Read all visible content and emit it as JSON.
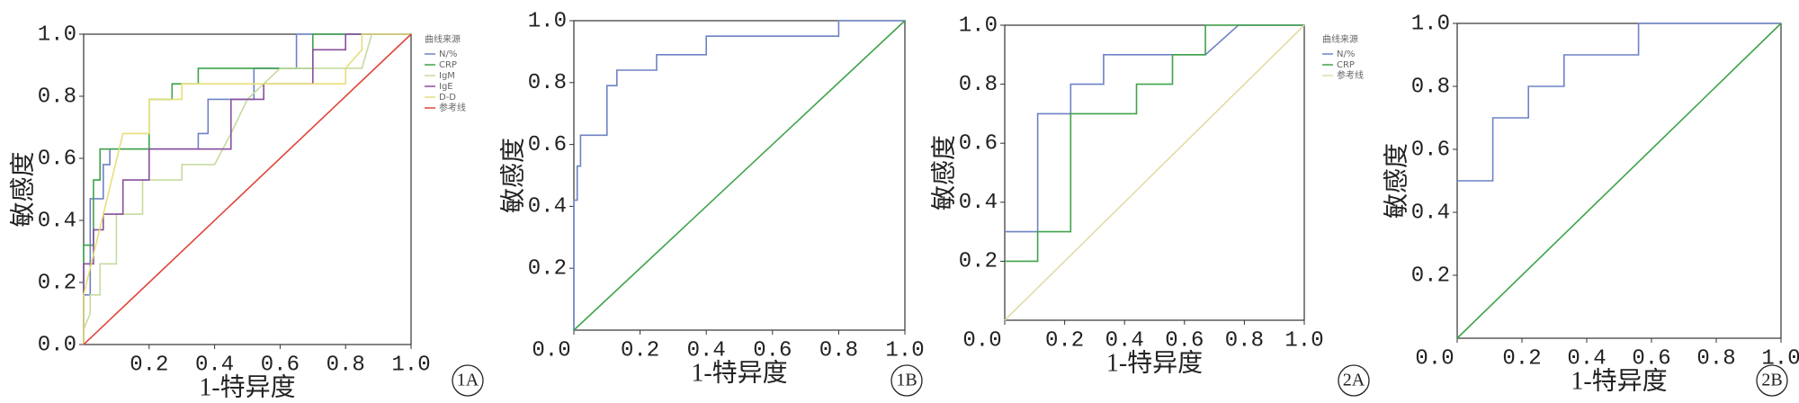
{
  "chart_data": [
    {
      "type": "line",
      "panel": "1A",
      "xlabel": "1-特异度",
      "ylabel": "敏感度",
      "legend": "right",
      "legend_title": "曲线来源",
      "xlim": [
        0,
        1
      ],
      "ylim": [
        0,
        1
      ],
      "xticks": [
        0.2,
        0.4,
        0.6,
        0.8,
        {
          "value": 1,
          "label": "1.0"
        }
      ],
      "yticks": [
        {
          "value": 0,
          "label": "0.0"
        },
        0.2,
        0.4,
        0.6,
        0.8,
        {
          "value": 1,
          "label": "1.0"
        }
      ],
      "series": [
        {
          "name": "N/%",
          "color": "#6d82c6",
          "x": [
            0,
            0,
            0.02,
            0.02,
            0.06,
            0.06,
            0.08,
            0.08,
            0.35,
            0.35,
            0.38,
            0.38,
            0.52,
            0.52,
            0.65,
            0.65,
            1
          ],
          "values": [
            0,
            0.16,
            0.16,
            0.47,
            0.47,
            0.58,
            0.58,
            0.63,
            0.63,
            0.68,
            0.68,
            0.79,
            0.79,
            0.89,
            0.89,
            1,
            1
          ]
        },
        {
          "name": "CRP",
          "color": "#3fa34a",
          "x": [
            0,
            0,
            0.03,
            0.03,
            0.05,
            0.05,
            0.2,
            0.2,
            0.27,
            0.27,
            0.35,
            0.35,
            0.7,
            0.7,
            1
          ],
          "values": [
            0,
            0.32,
            0.32,
            0.53,
            0.53,
            0.63,
            0.63,
            0.79,
            0.79,
            0.84,
            0.84,
            0.89,
            0.89,
            1,
            1
          ]
        },
        {
          "name": "IgM",
          "color": "#c6dba0",
          "x": [
            0,
            0,
            0.02,
            0.02,
            0.05,
            0.05,
            0.1,
            0.1,
            0.18,
            0.18,
            0.3,
            0.3,
            0.4,
            0.45,
            0.5,
            0.6,
            0.85,
            0.88,
            1
          ],
          "values": [
            0,
            0.05,
            0.1,
            0.16,
            0.16,
            0.26,
            0.26,
            0.42,
            0.42,
            0.53,
            0.53,
            0.58,
            0.58,
            0.68,
            0.79,
            0.89,
            0.89,
            1,
            1
          ]
        },
        {
          "name": "IgE",
          "color": "#8a4f9e",
          "x": [
            0,
            0,
            0.03,
            0.03,
            0.06,
            0.06,
            0.12,
            0.12,
            0.2,
            0.2,
            0.45,
            0.45,
            0.55,
            0.55,
            0.7,
            0.7,
            0.8,
            0.8,
            1
          ],
          "values": [
            0,
            0.26,
            0.26,
            0.37,
            0.37,
            0.42,
            0.42,
            0.53,
            0.53,
            0.63,
            0.63,
            0.79,
            0.79,
            0.84,
            0.84,
            0.95,
            0.95,
            1,
            1
          ]
        },
        {
          "name": "D-D",
          "color": "#e6df7a",
          "x": [
            0,
            0,
            0.12,
            0.2,
            0.2,
            0.3,
            0.3,
            0.8,
            0.8,
            0.85,
            0.85,
            1
          ],
          "values": [
            0,
            0.16,
            0.68,
            0.68,
            0.79,
            0.79,
            0.84,
            0.84,
            0.89,
            0.95,
            1,
            1
          ]
        },
        {
          "name": "参考线",
          "color": "#e0453a",
          "x": [
            0,
            1
          ],
          "values": [
            0,
            1
          ]
        }
      ]
    },
    {
      "type": "line",
      "panel": "1B",
      "xlabel": "1-特异度",
      "ylabel": "敏感度",
      "xlim": [
        0,
        1
      ],
      "ylim": [
        0,
        1
      ],
      "xticks": [
        {
          "value": 0,
          "label": "0.0"
        },
        0.2,
        0.4,
        0.6,
        0.8,
        {
          "value": 1,
          "label": "1.0"
        }
      ],
      "yticks": [
        0.2,
        0.4,
        0.6,
        0.8,
        {
          "value": 1,
          "label": "1.0"
        }
      ],
      "series": [
        {
          "color": "#6d82c6",
          "x": [
            0,
            0,
            0.01,
            0.01,
            0.02,
            0.02,
            0.1,
            0.1,
            0.13,
            0.13,
            0.25,
            0.25,
            0.4,
            0.4,
            0.8,
            0.8,
            1
          ],
          "values": [
            0,
            0.42,
            0.42,
            0.53,
            0.53,
            0.63,
            0.63,
            0.79,
            0.79,
            0.84,
            0.84,
            0.89,
            0.89,
            0.95,
            0.95,
            1,
            1
          ]
        },
        {
          "color": "#3fa34a",
          "x": [
            0,
            1
          ],
          "values": [
            0,
            1
          ]
        }
      ]
    },
    {
      "type": "line",
      "panel": "2A",
      "xlabel": "1-特异度",
      "ylabel": "敏感度",
      "legend": "right",
      "legend_title": "曲线来源",
      "xlim": [
        0,
        1
      ],
      "ylim": [
        0,
        1
      ],
      "xticks": [
        {
          "value": 0,
          "label": "0.0"
        },
        0.2,
        0.4,
        0.6,
        0.8,
        {
          "value": 1,
          "label": "1.0"
        }
      ],
      "yticks": [
        0.2,
        0.4,
        0.6,
        0.8,
        {
          "value": 1,
          "label": "1.0"
        }
      ],
      "series": [
        {
          "name": "N/%",
          "color": "#6d82c6",
          "x": [
            0,
            0.11,
            0.11,
            0.22,
            0.22,
            0.33,
            0.33,
            0.67,
            0.78,
            1
          ],
          "values": [
            0.3,
            0.3,
            0.7,
            0.7,
            0.8,
            0.8,
            0.9,
            0.9,
            1,
            1
          ]
        },
        {
          "name": "CRP",
          "color": "#3fa34a",
          "x": [
            0,
            0.11,
            0.11,
            0.22,
            0.22,
            0.44,
            0.44,
            0.56,
            0.56,
            0.67,
            0.67,
            1
          ],
          "values": [
            0.2,
            0.2,
            0.3,
            0.3,
            0.7,
            0.7,
            0.8,
            0.8,
            0.9,
            0.9,
            1,
            1
          ]
        },
        {
          "name": "参考线",
          "color": "#e2dca6",
          "x": [
            0,
            1
          ],
          "values": [
            0,
            1
          ]
        }
      ]
    },
    {
      "type": "line",
      "panel": "2B",
      "xlabel": "1-特异度",
      "ylabel": "敏感度",
      "xlim": [
        0,
        1
      ],
      "ylim": [
        0,
        1
      ],
      "xticks": [
        {
          "value": 0,
          "label": "0.0"
        },
        0.2,
        0.4,
        0.6,
        0.8,
        {
          "value": 1,
          "label": "1.0"
        }
      ],
      "yticks": [
        0.2,
        0.4,
        0.6,
        0.8,
        {
          "value": 1,
          "label": "1.0"
        }
      ],
      "series": [
        {
          "color": "#6d82c6",
          "x": [
            0,
            0.11,
            0.11,
            0.22,
            0.22,
            0.33,
            0.33,
            0.56,
            0.56,
            1
          ],
          "values": [
            0.5,
            0.5,
            0.7,
            0.7,
            0.8,
            0.8,
            0.9,
            0.9,
            1,
            1
          ]
        },
        {
          "color": "#3fa34a",
          "x": [
            0,
            1
          ],
          "values": [
            0,
            1
          ]
        }
      ]
    }
  ]
}
